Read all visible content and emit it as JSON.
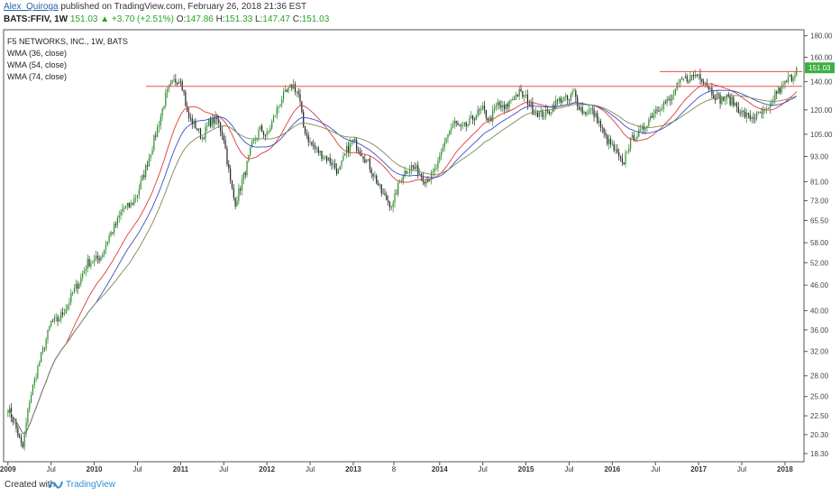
{
  "header": {
    "author": "Alex_Quiroga",
    "published_text": "published on TradingView.com, February 26, 2018 21:36 EST",
    "symbol": "BATS:FFIV, 1W",
    "last": "151.03",
    "change": "+3.70 (+2.51%)",
    "o_label": "O:",
    "o_value": "147.86",
    "h_label": "H:",
    "h_value": "151.33",
    "l_label": "L:",
    "l_value": "147.47",
    "c_label": "C:",
    "c_value": "151.03"
  },
  "legend": {
    "title": "F5 NETWORKS, INC., 1W, BATS",
    "studies": [
      "WMA (36, close)",
      "WMA (54, close)",
      "WMA (74, close)"
    ]
  },
  "footer": {
    "created_with": "Created with",
    "brand": "TradingView"
  },
  "colors": {
    "up": "#2e8b2e",
    "down": "#222222",
    "wma36": "#e03a3a",
    "wma54": "#3b4fc4",
    "wma74": "#7a8a55",
    "resistance": "#e05050",
    "price_badge": "#3cb043"
  },
  "chart_data": {
    "type": "candlestick",
    "scale": "log",
    "ylim": [
      17.5,
      186
    ],
    "y_ticks": [
      "180.00",
      "160.00",
      "140.00",
      "120.00",
      "105.00",
      "93.00",
      "81.00",
      "73.00",
      "65.50",
      "58.00",
      "52.00",
      "46.00",
      "40.00",
      "36.00",
      "32.00",
      "28.00",
      "25.00",
      "22.50",
      "20.30",
      "18.30"
    ],
    "x_ticks": [
      "2009",
      "Jul",
      "2010",
      "Jul",
      "2011",
      "Jul",
      "2012",
      "Jul",
      "2013",
      "8",
      "2014",
      "Jul",
      "2015",
      "Jul",
      "2016",
      "Jul",
      "2017",
      "Jul",
      "2018"
    ],
    "last_price_label": "151.03",
    "resistance_levels": [
      {
        "value": 136.5,
        "from": "2010.6",
        "to": "2018.2"
      },
      {
        "value": 148.0,
        "from": "2016.55",
        "to": "2018.2"
      }
    ],
    "price_path": [
      {
        "t": 2009.0,
        "v": 23.5
      },
      {
        "t": 2009.08,
        "v": 21.5
      },
      {
        "t": 2009.17,
        "v": 18.7
      },
      {
        "t": 2009.25,
        "v": 24.5
      },
      {
        "t": 2009.33,
        "v": 28.5
      },
      {
        "t": 2009.42,
        "v": 33.0
      },
      {
        "t": 2009.5,
        "v": 37.5
      },
      {
        "t": 2009.58,
        "v": 38.0
      },
      {
        "t": 2009.67,
        "v": 40.5
      },
      {
        "t": 2009.75,
        "v": 44.0
      },
      {
        "t": 2009.83,
        "v": 47.0
      },
      {
        "t": 2009.92,
        "v": 52.0
      },
      {
        "t": 2010.0,
        "v": 52.5
      },
      {
        "t": 2010.08,
        "v": 54.0
      },
      {
        "t": 2010.17,
        "v": 60.0
      },
      {
        "t": 2010.25,
        "v": 64.0
      },
      {
        "t": 2010.33,
        "v": 70.0
      },
      {
        "t": 2010.42,
        "v": 71.0
      },
      {
        "t": 2010.5,
        "v": 76.0
      },
      {
        "t": 2010.58,
        "v": 85.0
      },
      {
        "t": 2010.67,
        "v": 98.0
      },
      {
        "t": 2010.75,
        "v": 112.0
      },
      {
        "t": 2010.83,
        "v": 130.0
      },
      {
        "t": 2010.92,
        "v": 140.0
      },
      {
        "t": 2011.0,
        "v": 143.0
      },
      {
        "t": 2011.04,
        "v": 131.0
      },
      {
        "t": 2011.08,
        "v": 116.0
      },
      {
        "t": 2011.17,
        "v": 110.0
      },
      {
        "t": 2011.25,
        "v": 103.0
      },
      {
        "t": 2011.33,
        "v": 112.0
      },
      {
        "t": 2011.42,
        "v": 114.0
      },
      {
        "t": 2011.5,
        "v": 103.0
      },
      {
        "t": 2011.58,
        "v": 80.0
      },
      {
        "t": 2011.63,
        "v": 72.0
      },
      {
        "t": 2011.67,
        "v": 76.0
      },
      {
        "t": 2011.75,
        "v": 86.0
      },
      {
        "t": 2011.83,
        "v": 99.0
      },
      {
        "t": 2011.92,
        "v": 108.0
      },
      {
        "t": 2012.0,
        "v": 104.0
      },
      {
        "t": 2012.08,
        "v": 115.0
      },
      {
        "t": 2012.17,
        "v": 128.0
      },
      {
        "t": 2012.25,
        "v": 133.0
      },
      {
        "t": 2012.3,
        "v": 138.0
      },
      {
        "t": 2012.37,
        "v": 130.0
      },
      {
        "t": 2012.42,
        "v": 110.0
      },
      {
        "t": 2012.5,
        "v": 100.0
      },
      {
        "t": 2012.58,
        "v": 96.0
      },
      {
        "t": 2012.67,
        "v": 93.0
      },
      {
        "t": 2012.75,
        "v": 90.0
      },
      {
        "t": 2012.83,
        "v": 85.0
      },
      {
        "t": 2012.92,
        "v": 96.0
      },
      {
        "t": 2013.0,
        "v": 101.0
      },
      {
        "t": 2013.08,
        "v": 96.0
      },
      {
        "t": 2013.17,
        "v": 90.0
      },
      {
        "t": 2013.25,
        "v": 83.0
      },
      {
        "t": 2013.33,
        "v": 76.0
      },
      {
        "t": 2013.42,
        "v": 72.0
      },
      {
        "t": 2013.46,
        "v": 71.0
      },
      {
        "t": 2013.5,
        "v": 77.0
      },
      {
        "t": 2013.58,
        "v": 85.0
      },
      {
        "t": 2013.67,
        "v": 88.0
      },
      {
        "t": 2013.75,
        "v": 86.0
      },
      {
        "t": 2013.83,
        "v": 82.0
      },
      {
        "t": 2013.92,
        "v": 84.0
      },
      {
        "t": 2014.0,
        "v": 91.0
      },
      {
        "t": 2014.08,
        "v": 104.0
      },
      {
        "t": 2014.17,
        "v": 112.0
      },
      {
        "t": 2014.25,
        "v": 108.0
      },
      {
        "t": 2014.33,
        "v": 111.0
      },
      {
        "t": 2014.42,
        "v": 117.0
      },
      {
        "t": 2014.5,
        "v": 120.0
      },
      {
        "t": 2014.58,
        "v": 113.0
      },
      {
        "t": 2014.67,
        "v": 124.0
      },
      {
        "t": 2014.75,
        "v": 120.0
      },
      {
        "t": 2014.83,
        "v": 127.0
      },
      {
        "t": 2014.92,
        "v": 132.0
      },
      {
        "t": 2015.0,
        "v": 128.0
      },
      {
        "t": 2015.08,
        "v": 120.0
      },
      {
        "t": 2015.17,
        "v": 117.0
      },
      {
        "t": 2015.25,
        "v": 118.0
      },
      {
        "t": 2015.33,
        "v": 124.0
      },
      {
        "t": 2015.42,
        "v": 128.0
      },
      {
        "t": 2015.5,
        "v": 126.0
      },
      {
        "t": 2015.55,
        "v": 133.0
      },
      {
        "t": 2015.6,
        "v": 124.0
      },
      {
        "t": 2015.67,
        "v": 118.0
      },
      {
        "t": 2015.75,
        "v": 120.0
      },
      {
        "t": 2015.83,
        "v": 114.0
      },
      {
        "t": 2015.92,
        "v": 103.0
      },
      {
        "t": 2016.0,
        "v": 98.0
      },
      {
        "t": 2016.08,
        "v": 92.0
      },
      {
        "t": 2016.12,
        "v": 88.0
      },
      {
        "t": 2016.17,
        "v": 97.0
      },
      {
        "t": 2016.25,
        "v": 104.0
      },
      {
        "t": 2016.33,
        "v": 106.0
      },
      {
        "t": 2016.42,
        "v": 114.0
      },
      {
        "t": 2016.5,
        "v": 120.0
      },
      {
        "t": 2016.58,
        "v": 124.0
      },
      {
        "t": 2016.67,
        "v": 126.0
      },
      {
        "t": 2016.75,
        "v": 136.0
      },
      {
        "t": 2016.83,
        "v": 142.0
      },
      {
        "t": 2016.92,
        "v": 144.0
      },
      {
        "t": 2017.0,
        "v": 146.0
      },
      {
        "t": 2017.08,
        "v": 140.0
      },
      {
        "t": 2017.17,
        "v": 131.0
      },
      {
        "t": 2017.25,
        "v": 127.0
      },
      {
        "t": 2017.33,
        "v": 128.0
      },
      {
        "t": 2017.42,
        "v": 124.0
      },
      {
        "t": 2017.5,
        "v": 118.0
      },
      {
        "t": 2017.58,
        "v": 115.0
      },
      {
        "t": 2017.67,
        "v": 116.0
      },
      {
        "t": 2017.75,
        "v": 118.0
      },
      {
        "t": 2017.83,
        "v": 120.0
      },
      {
        "t": 2017.88,
        "v": 131.0
      },
      {
        "t": 2017.96,
        "v": 135.0
      },
      {
        "t": 2018.04,
        "v": 142.0
      },
      {
        "t": 2018.1,
        "v": 145.0
      },
      {
        "t": 2018.14,
        "v": 151.0
      }
    ]
  }
}
